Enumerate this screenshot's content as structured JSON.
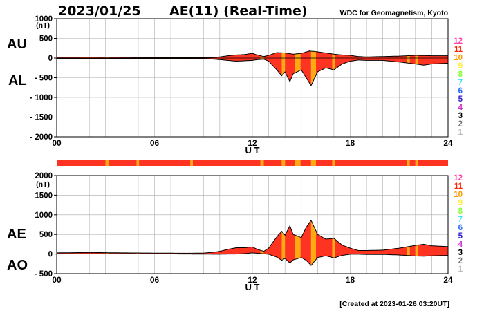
{
  "header": {
    "date": "2023/01/25",
    "title": "AE(11) (Real-Time)",
    "source": "WDC for Geomagnetism, Kyoto",
    "created": "[Created at 2023-01-26 03:20UT]"
  },
  "colors": {
    "fill_main": "#ff3322",
    "fill_alt": "#ffaa11",
    "line": "#000000",
    "grid": "#aaaaaa"
  },
  "station_legend": [
    {
      "label": "12",
      "color": "#ff44aa"
    },
    {
      "label": "11",
      "color": "#ff2200"
    },
    {
      "label": "10",
      "color": "#ff9900"
    },
    {
      "label": "9",
      "color": "#ffee33"
    },
    {
      "label": "8",
      "color": "#88ff33"
    },
    {
      "label": "7",
      "color": "#33ddff"
    },
    {
      "label": "6",
      "color": "#2266ff"
    },
    {
      "label": "5",
      "color": "#3322cc"
    },
    {
      "label": "4",
      "color": "#cc33cc"
    },
    {
      "label": "3",
      "color": "#000000"
    },
    {
      "label": "2",
      "color": "#777777"
    },
    {
      "label": "1",
      "color": "#bbbbbb"
    }
  ],
  "chart_data": [
    {
      "type": "area",
      "panel": "AU/AL",
      "label_upper": "AU",
      "label_lower": "AL",
      "ylabel_unit": "(nT)",
      "xlabel": "U T",
      "xlim": [
        0,
        24
      ],
      "ylim": [
        -2000,
        1000
      ],
      "yticks": [
        1000,
        500,
        0,
        -500,
        -1000,
        -1500,
        -2000
      ],
      "yticklabels": [
        "1000",
        "500",
        "0",
        "- 500",
        "- 1000",
        "- 1500",
        "- 2000"
      ],
      "xticks": [
        0,
        6,
        12,
        18,
        24
      ],
      "xticklabels": [
        "00",
        "06",
        "12",
        "18",
        "24"
      ],
      "grid": true,
      "series": [
        {
          "key": "AU",
          "x": [
            0,
            2,
            4,
            6,
            8,
            9,
            9.7,
            10,
            10.5,
            11,
            11.5,
            12,
            12.3,
            12.7,
            13,
            13.5,
            14,
            14.5,
            15,
            15.5,
            16,
            16.5,
            17,
            17.5,
            18,
            18.5,
            19,
            20,
            21,
            22,
            23,
            24
          ],
          "values": [
            20,
            25,
            20,
            15,
            10,
            10,
            20,
            30,
            60,
            80,
            90,
            120,
            80,
            40,
            70,
            140,
            130,
            100,
            120,
            180,
            160,
            130,
            100,
            80,
            70,
            40,
            30,
            40,
            50,
            70,
            60,
            60
          ]
        },
        {
          "key": "AL",
          "x": [
            0,
            2,
            4,
            6,
            8,
            9,
            9.7,
            10,
            10.5,
            11,
            11.5,
            12,
            12.3,
            12.7,
            13,
            13.5,
            13.8,
            14,
            14.3,
            14.5,
            15,
            15.3,
            15.6,
            16,
            16.5,
            17,
            17.5,
            18,
            18.5,
            19,
            20,
            21,
            22,
            22.5,
            23,
            24
          ],
          "values": [
            -10,
            -15,
            -10,
            -10,
            -10,
            -15,
            -30,
            -40,
            -60,
            -80,
            -70,
            -60,
            -40,
            -30,
            -80,
            -300,
            -450,
            -350,
            -600,
            -400,
            -300,
            -500,
            -700,
            -350,
            -250,
            -300,
            -150,
            -80,
            -50,
            -60,
            -60,
            -100,
            -150,
            -180,
            -150,
            -130
          ]
        }
      ]
    },
    {
      "type": "area",
      "panel": "AE/AO",
      "label_upper": "AE",
      "label_lower": "AO",
      "ylabel_unit": "(nT)",
      "xlabel": "U T",
      "xlim": [
        0,
        24
      ],
      "ylim": [
        -500,
        2000
      ],
      "yticks": [
        2000,
        1500,
        1000,
        500,
        0,
        -500
      ],
      "yticklabels": [
        "2000",
        "1500",
        "1000",
        "500",
        "0",
        "- 500"
      ],
      "xticks": [
        0,
        6,
        12,
        18,
        24
      ],
      "xticklabels": [
        "00",
        "06",
        "12",
        "18",
        "24"
      ],
      "grid": true,
      "series": [
        {
          "key": "AE",
          "x": [
            0,
            2,
            4,
            6,
            8,
            9,
            9.7,
            10,
            10.5,
            11,
            11.5,
            12,
            12.3,
            12.7,
            13,
            13.5,
            13.8,
            14,
            14.3,
            14.5,
            15,
            15.3,
            15.6,
            16,
            16.5,
            17,
            17.5,
            18,
            18.5,
            19,
            20,
            21,
            22,
            22.5,
            23,
            24
          ],
          "values": [
            30,
            40,
            30,
            25,
            20,
            25,
            50,
            70,
            120,
            160,
            160,
            180,
            120,
            70,
            150,
            440,
            580,
            480,
            720,
            500,
            420,
            680,
            860,
            500,
            380,
            400,
            230,
            150,
            90,
            90,
            100,
            150,
            220,
            250,
            210,
            190
          ]
        },
        {
          "key": "AO",
          "x": [
            0,
            2,
            4,
            6,
            8,
            9,
            9.7,
            10,
            10.5,
            11,
            11.5,
            12,
            12.3,
            12.7,
            13,
            13.5,
            13.8,
            14,
            14.3,
            14.5,
            15,
            15.3,
            15.6,
            16,
            16.5,
            17,
            17.5,
            18,
            18.5,
            19,
            20,
            21,
            22,
            22.5,
            23,
            24
          ],
          "values": [
            5,
            5,
            5,
            3,
            0,
            -3,
            -5,
            -5,
            0,
            0,
            10,
            30,
            20,
            5,
            -5,
            -80,
            -160,
            -110,
            -230,
            -150,
            -90,
            -160,
            -290,
            -90,
            -45,
            -100,
            -35,
            -5,
            -5,
            -10,
            -10,
            -25,
            -50,
            -55,
            -45,
            -35
          ]
        }
      ]
    },
    {
      "type": "bar",
      "panel": "station-coverage-strip",
      "segments": [
        {
          "start": 0,
          "end": 3.0,
          "level": "main"
        },
        {
          "start": 3.0,
          "end": 3.2,
          "level": "alt"
        },
        {
          "start": 3.2,
          "end": 4.9,
          "level": "main"
        },
        {
          "start": 4.9,
          "end": 5.05,
          "level": "alt"
        },
        {
          "start": 5.05,
          "end": 8.2,
          "level": "main"
        },
        {
          "start": 8.2,
          "end": 8.35,
          "level": "alt"
        },
        {
          "start": 8.35,
          "end": 12.5,
          "level": "main"
        },
        {
          "start": 12.5,
          "end": 12.7,
          "level": "alt"
        },
        {
          "start": 12.7,
          "end": 13.8,
          "level": "main"
        },
        {
          "start": 13.8,
          "end": 14.0,
          "level": "alt"
        },
        {
          "start": 14.0,
          "end": 14.6,
          "level": "main"
        },
        {
          "start": 14.6,
          "end": 14.95,
          "level": "alt"
        },
        {
          "start": 14.95,
          "end": 15.6,
          "level": "main"
        },
        {
          "start": 15.6,
          "end": 15.9,
          "level": "alt"
        },
        {
          "start": 15.9,
          "end": 16.9,
          "level": "main"
        },
        {
          "start": 16.9,
          "end": 17.05,
          "level": "alt"
        },
        {
          "start": 17.05,
          "end": 21.5,
          "level": "main"
        },
        {
          "start": 21.5,
          "end": 21.65,
          "level": "alt"
        },
        {
          "start": 21.65,
          "end": 22.0,
          "level": "main"
        },
        {
          "start": 22.0,
          "end": 22.15,
          "level": "alt"
        },
        {
          "start": 22.15,
          "end": 24,
          "level": "main"
        }
      ]
    }
  ]
}
